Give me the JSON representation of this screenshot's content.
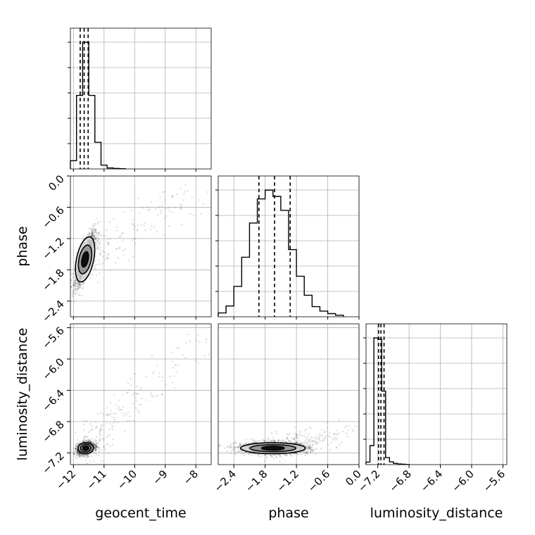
{
  "chart_data": {
    "type": "corner",
    "parameters": [
      "geocent_time",
      "phase",
      "luminosity_distance"
    ],
    "axes": {
      "geocent_time": {
        "label": "geocent_time",
        "range": [
          -12.1,
          -7.5
        ],
        "ticks": [
          -12,
          -11,
          -10,
          -9,
          -8
        ],
        "tick_labels": [
          "−12",
          "−11",
          "−10",
          "−9",
          "−8"
        ]
      },
      "phase": {
        "label": "phase",
        "range": [
          -2.7,
          0.0
        ],
        "ticks": [
          -2.4,
          -1.8,
          -1.2,
          -0.6,
          0.0
        ],
        "tick_labels": [
          "−2.4",
          "−1.8",
          "−1.2",
          "−0.6",
          "0.0"
        ]
      },
      "luminosity_distance": {
        "label": "luminosity_distance",
        "range": [
          -7.35,
          -5.55
        ],
        "ticks": [
          -7.2,
          -6.8,
          -6.4,
          -6.0,
          -5.6
        ],
        "tick_labels": [
          "−7.2",
          "−6.8",
          "−6.4",
          "−6.0",
          "−5.6"
        ]
      }
    },
    "histograms": {
      "geocent_time": {
        "bin_edges": [
          -12.1,
          -11.9,
          -11.7,
          -11.5,
          -11.3,
          -11.1,
          -10.9,
          -10.7,
          -10.5,
          -10.3
        ],
        "counts": [
          65,
          580,
          1000,
          580,
          210,
          30,
          8,
          4,
          2
        ],
        "quantiles": [
          -11.78,
          -11.65,
          -11.52
        ]
      },
      "phase": {
        "bin_edges": [
          -2.7,
          -2.55,
          -2.4,
          -2.25,
          -2.1,
          -1.95,
          -1.8,
          -1.65,
          -1.5,
          -1.35,
          -1.2,
          -1.05,
          -0.9,
          -0.75,
          -0.6,
          -0.45,
          -0.3
        ],
        "counts": [
          30,
          85,
          240,
          470,
          740,
          930,
          1000,
          950,
          840,
          530,
          320,
          170,
          80,
          45,
          25,
          12
        ],
        "quantiles": [
          -1.92,
          -1.62,
          -1.32
        ]
      },
      "luminosity_distance": {
        "bin_edges": [
          -7.35,
          -7.3,
          -7.25,
          -7.2,
          -7.15,
          -7.1,
          -7.05,
          -7.0,
          -6.95,
          -6.9,
          -6.85,
          -6.8
        ],
        "counts": [
          20,
          150,
          1000,
          990,
          580,
          55,
          22,
          10,
          5,
          3,
          1
        ],
        "quantiles": [
          -7.19,
          -7.16,
          -7.12
        ]
      }
    },
    "scatter": [
      {
        "x": "geocent_time",
        "y": "phase",
        "center": [
          -11.62,
          -1.6
        ],
        "correlation": 0.8,
        "contour_levels": [
          {
            "rx": 0.1,
            "ry": 0.15
          },
          {
            "rx": 0.2,
            "ry": 0.28
          },
          {
            "rx": 0.28,
            "ry": 0.44
          }
        ]
      },
      {
        "x": "geocent_time",
        "y": "luminosity_distance",
        "center": [
          -11.6,
          -7.14
        ],
        "correlation": 0.3,
        "contour_levels": [
          {
            "rx": 0.1,
            "ry": 0.03
          },
          {
            "rx": 0.17,
            "ry": 0.05
          },
          {
            "rx": 0.25,
            "ry": 0.07
          }
        ]
      },
      {
        "x": "phase",
        "y": "luminosity_distance",
        "center": [
          -1.65,
          -7.14
        ],
        "correlation": 0.0,
        "contour_levels": [
          {
            "rx": 0.22,
            "ry": 0.025
          },
          {
            "rx": 0.44,
            "ry": 0.045
          },
          {
            "rx": 0.62,
            "ry": 0.07
          }
        ]
      }
    ]
  }
}
